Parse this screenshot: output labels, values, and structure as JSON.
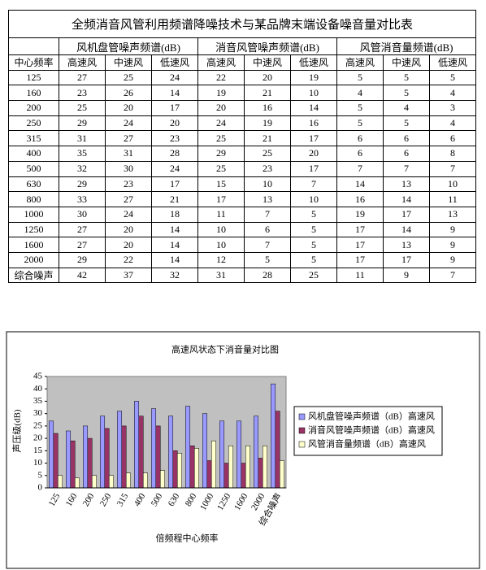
{
  "table": {
    "title": "全频消音风管利用频谱降噪技术与某品牌末端设备噪音量对比表",
    "groups": [
      "风机盘管噪声频谱(dB)",
      "消音风管噪声频谱(dB)",
      "风管消音量频谱(dB)"
    ],
    "subheader": [
      "中心频率",
      "高速风",
      "中速风",
      "低速风",
      "高速风",
      "中速风",
      "低速风",
      "高速风",
      "中速风",
      "低速风"
    ],
    "rows": [
      [
        "125",
        27,
        25,
        24,
        22,
        20,
        19,
        5,
        5,
        5
      ],
      [
        "160",
        23,
        26,
        14,
        19,
        21,
        10,
        4,
        5,
        4
      ],
      [
        "200",
        25,
        20,
        17,
        20,
        16,
        14,
        5,
        4,
        3
      ],
      [
        "250",
        29,
        24,
        20,
        24,
        19,
        16,
        5,
        5,
        4
      ],
      [
        "315",
        31,
        27,
        23,
        25,
        21,
        17,
        6,
        6,
        6
      ],
      [
        "400",
        35,
        31,
        28,
        29,
        25,
        20,
        6,
        6,
        8
      ],
      [
        "500",
        32,
        30,
        24,
        25,
        23,
        17,
        7,
        7,
        7
      ],
      [
        "630",
        29,
        23,
        17,
        15,
        10,
        7,
        14,
        13,
        10
      ],
      [
        "800",
        33,
        27,
        21,
        17,
        13,
        10,
        16,
        14,
        11
      ],
      [
        "1000",
        30,
        24,
        18,
        11,
        7,
        5,
        19,
        17,
        13
      ],
      [
        "1250",
        27,
        20,
        14,
        10,
        6,
        5,
        17,
        14,
        9
      ],
      [
        "1600",
        27,
        20,
        14,
        10,
        7,
        5,
        17,
        13,
        9
      ],
      [
        "2000",
        29,
        22,
        14,
        12,
        5,
        5,
        17,
        17,
        9
      ],
      [
        "综合噪声",
        42,
        37,
        32,
        31,
        28,
        25,
        11,
        9,
        7
      ]
    ]
  },
  "chart_data": {
    "type": "bar",
    "title": "高速风状态下消音量对比图",
    "x_label": "倍频程中心频率",
    "y_label": "声压级(dB)",
    "categories": [
      "125",
      "160",
      "200",
      "250",
      "315",
      "400",
      "500",
      "630",
      "800",
      "1000",
      "1250",
      "1600",
      "2000",
      "综合噪声"
    ],
    "series": [
      {
        "name": "风机盘管噪声频谱（dB）高速风",
        "color": "#9999ff",
        "values": [
          27,
          23,
          25,
          29,
          31,
          35,
          32,
          29,
          33,
          30,
          27,
          27,
          29,
          42
        ]
      },
      {
        "name": "消音风管噪声频谱（dB）高速风",
        "color": "#993366",
        "values": [
          22,
          19,
          20,
          24,
          25,
          29,
          25,
          15,
          17,
          11,
          10,
          10,
          12,
          31
        ]
      },
      {
        "name": "风管消音量频谱（dB）高速风",
        "color": "#ffffcc",
        "values": [
          5,
          4,
          5,
          5,
          6,
          6,
          7,
          14,
          16,
          19,
          17,
          17,
          17,
          11
        ]
      }
    ],
    "ylim": [
      0,
      45
    ],
    "yticks": [
      0,
      5,
      10,
      15,
      20,
      25,
      30,
      35,
      40,
      45
    ],
    "legend": "right"
  }
}
